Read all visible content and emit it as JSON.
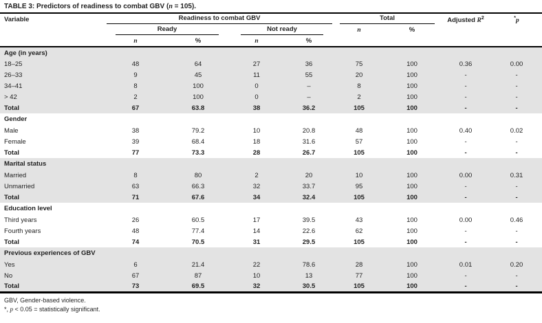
{
  "title": {
    "tag": "TABLE 3:",
    "pre": " Predictors of readiness to combat GBV (",
    "n": "n",
    "post": " = 105)."
  },
  "header": {
    "variable": "Variable",
    "readiness": "Readiness to combat GBV",
    "ready": "Ready",
    "not_ready": "Not ready",
    "total": "Total",
    "n": "n",
    "pct": "%",
    "adjusted": "Adjusted ",
    "adjusted_var": "R",
    "adjusted_sup": "2",
    "p_star": "*",
    "p_var": "p"
  },
  "columns": [
    "Variable",
    "Ready n",
    "Ready %",
    "Not ready n",
    "Not ready %",
    "Total n",
    "Total %",
    "Adjusted R2",
    "*p"
  ],
  "sections": [
    {
      "label": "Age (in years)",
      "shaded": true,
      "rows": [
        {
          "label": "18–25",
          "cells": [
            "48",
            "64",
            "27",
            "36",
            "75",
            "100",
            "0.36",
            "0.00"
          ],
          "bold": false
        },
        {
          "label": "26–33",
          "cells": [
            "9",
            "45",
            "11",
            "55",
            "20",
            "100",
            "-",
            "-"
          ],
          "bold": false
        },
        {
          "label": "34–41",
          "cells": [
            "8",
            "100",
            "0",
            "–",
            "8",
            "100",
            "-",
            "-"
          ],
          "bold": false
        },
        {
          "label": "> 42",
          "cells": [
            "2",
            "100",
            "0",
            "–",
            "2",
            "100",
            "-",
            "-"
          ],
          "bold": false
        },
        {
          "label": "Total",
          "cells": [
            "67",
            "63.8",
            "38",
            "36.2",
            "105",
            "100",
            "-",
            "-"
          ],
          "bold": true
        }
      ]
    },
    {
      "label": "Gender",
      "shaded": false,
      "rows": [
        {
          "label": "Male",
          "cells": [
            "38",
            "79.2",
            "10",
            "20.8",
            "48",
            "100",
            "0.40",
            "0.02"
          ],
          "bold": false
        },
        {
          "label": "Female",
          "cells": [
            "39",
            "68.4",
            "18",
            "31.6",
            "57",
            "100",
            "-",
            "-"
          ],
          "bold": false
        },
        {
          "label": "Total",
          "cells": [
            "77",
            "73.3",
            "28",
            "26.7",
            "105",
            "100",
            "-",
            "-"
          ],
          "bold": true
        }
      ]
    },
    {
      "label": "Marital status",
      "shaded": true,
      "rows": [
        {
          "label": "Married",
          "cells": [
            "8",
            "80",
            "2",
            "20",
            "10",
            "100",
            "0.00",
            "0.31"
          ],
          "bold": false
        },
        {
          "label": "Unmarried",
          "cells": [
            "63",
            "66.3",
            "32",
            "33.7",
            "95",
            "100",
            "-",
            "-"
          ],
          "bold": false
        },
        {
          "label": "Total",
          "cells": [
            "71",
            "67.6",
            "34",
            "32.4",
            "105",
            "100",
            "-",
            "-"
          ],
          "bold": true
        }
      ]
    },
    {
      "label": "Education level",
      "shaded": false,
      "rows": [
        {
          "label": "Third years",
          "cells": [
            "26",
            "60.5",
            "17",
            "39.5",
            "43",
            "100",
            "0.00",
            "0.46"
          ],
          "bold": false
        },
        {
          "label": "Fourth years",
          "cells": [
            "48",
            "77.4",
            "14",
            "22.6",
            "62",
            "100",
            "-",
            "-"
          ],
          "bold": false
        },
        {
          "label": "Total",
          "cells": [
            "74",
            "70.5",
            "31",
            "29.5",
            "105",
            "100",
            "-",
            "-"
          ],
          "bold": true
        }
      ]
    },
    {
      "label": "Previous experiences of GBV",
      "shaded": true,
      "rows": [
        {
          "label": "Yes",
          "cells": [
            "6",
            "21.4",
            "22",
            "78.6",
            "28",
            "100",
            "0.01",
            "0.20"
          ],
          "bold": false
        },
        {
          "label": "No",
          "cells": [
            "67",
            "87",
            "10",
            "13",
            "77",
            "100",
            "-",
            "-"
          ],
          "bold": false
        },
        {
          "label": "Total",
          "cells": [
            "73",
            "69.5",
            "32",
            "30.5",
            "105",
            "100",
            "-",
            "-"
          ],
          "bold": true
        }
      ]
    }
  ],
  "footnotes": {
    "line1": "GBV, Gender-based violence.",
    "line2_pre": "*, ",
    "line2_p": "p",
    "line2_post": " < 0.05 = statistically significant."
  },
  "colors": {
    "shaded_row": "#e3e3e3",
    "rule": "#000000",
    "text": "#1f1f1f"
  }
}
